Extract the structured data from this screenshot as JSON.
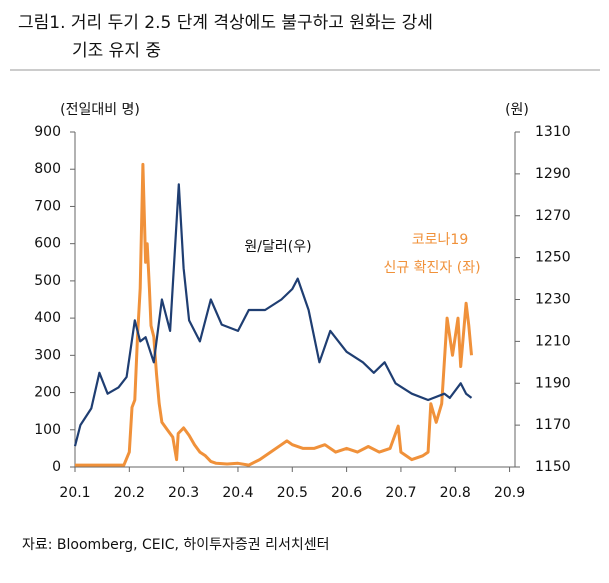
{
  "chart_data": {
    "type": "line",
    "title": [
      "그림1. 거리 두기 2.5 단계 격상에도 불구하고 원화는 강세",
      "기조 유지 중"
    ],
    "ylabel": "(전일대비 명)",
    "y2label": "(원)",
    "annotations": [
      "신규 확진자 (좌)"
    ],
    "source": "자료: Bloomberg, CEIC, 하이투자증권 리서치센터",
    "xlim": [
      1,
      9.1
    ],
    "xticks": [
      {
        "value": 1,
        "label": "20.1"
      },
      {
        "value": 2,
        "label": "20.2"
      },
      {
        "value": 3,
        "label": "20.3"
      },
      {
        "value": 4,
        "label": "20.4"
      },
      {
        "value": 5,
        "label": "20.5"
      },
      {
        "value": 6,
        "label": "20.6"
      },
      {
        "value": 7,
        "label": "20.7"
      },
      {
        "value": 8,
        "label": "20.8"
      },
      {
        "value": 9,
        "label": "20.9"
      }
    ],
    "ylim": [
      0,
      900
    ],
    "yticks": [
      0,
      100,
      200,
      300,
      400,
      500,
      600,
      700,
      800,
      900
    ],
    "y2lim": [
      1150,
      1310
    ],
    "y2ticks": [
      1150,
      1170,
      1190,
      1210,
      1230,
      1250,
      1270,
      1290,
      1310
    ],
    "series": [
      {
        "name": "코로나19",
        "color": "#f0913a",
        "x": [
          1.0,
          1.5,
          1.9,
          2.0,
          2.05,
          2.1,
          2.15,
          2.2,
          2.25,
          2.3,
          2.33,
          2.37,
          2.4,
          2.45,
          2.5,
          2.55,
          2.6,
          2.7,
          2.8,
          2.87,
          2.9,
          3.0,
          3.1,
          3.2,
          3.3,
          3.4,
          3.5,
          3.6,
          3.8,
          4.0,
          4.2,
          4.4,
          4.6,
          4.8,
          4.9,
          5.0,
          5.2,
          5.4,
          5.6,
          5.8,
          6.0,
          6.2,
          6.4,
          6.6,
          6.8,
          6.95,
          7.0,
          7.2,
          7.4,
          7.5,
          7.55,
          7.65,
          7.75,
          7.85,
          7.95,
          8.05,
          8.1,
          8.2,
          8.25,
          8.3
        ],
        "values": [
          5,
          5,
          5,
          40,
          160,
          180,
          350,
          480,
          813,
          550,
          600,
          480,
          380,
          350,
          250,
          170,
          120,
          100,
          80,
          20,
          90,
          105,
          85,
          60,
          40,
          30,
          15,
          10,
          8,
          10,
          5,
          20,
          40,
          60,
          70,
          60,
          50,
          50,
          60,
          40,
          50,
          40,
          55,
          40,
          50,
          110,
          40,
          20,
          30,
          40,
          170,
          120,
          170,
          400,
          300,
          400,
          270,
          440,
          380,
          300
        ]
      },
      {
        "name": "원/달러(우)",
        "color": "#1f3e72",
        "axis": "y2",
        "x": [
          1.0,
          1.1,
          1.3,
          1.45,
          1.6,
          1.8,
          1.95,
          2.1,
          2.2,
          2.3,
          2.45,
          2.6,
          2.75,
          2.91,
          3.0,
          3.1,
          3.3,
          3.5,
          3.7,
          4.0,
          4.2,
          4.5,
          4.8,
          5.0,
          5.1,
          5.3,
          5.5,
          5.7,
          6.0,
          6.3,
          6.5,
          6.7,
          6.9,
          7.2,
          7.5,
          7.8,
          7.9,
          8.1,
          8.2,
          8.3
        ],
        "values": [
          1160,
          1170,
          1178,
          1195,
          1185,
          1188,
          1193,
          1220,
          1210,
          1212,
          1200,
          1230,
          1215,
          1285,
          1245,
          1220,
          1210,
          1230,
          1218,
          1215,
          1225,
          1225,
          1230,
          1235,
          1240,
          1225,
          1200,
          1215,
          1205,
          1200,
          1195,
          1200,
          1190,
          1185,
          1182,
          1185,
          1183,
          1190,
          1185,
          1183
        ]
      }
    ]
  }
}
